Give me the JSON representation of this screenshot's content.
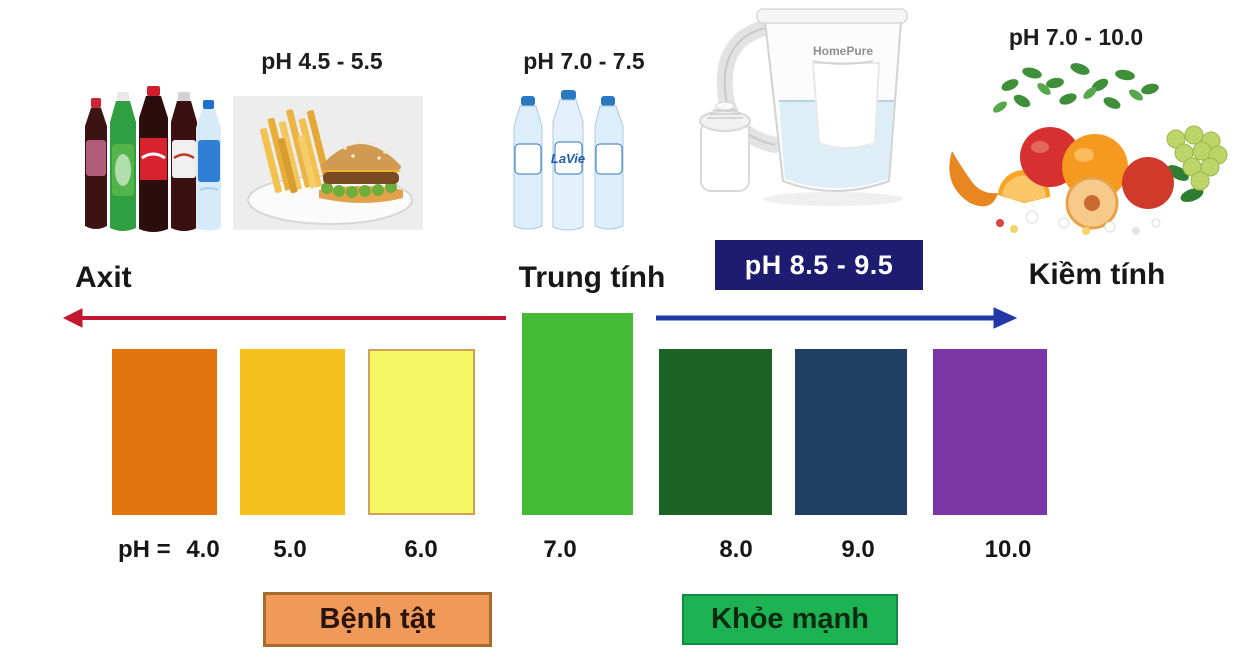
{
  "top_row": {
    "soda": {
      "alt": "soda-bottles"
    },
    "fastfood": {
      "ph_label": "pH 4.5 - 5.5"
    },
    "water": {
      "ph_label": "pH 7.0 - 7.5",
      "brand": "LaVie"
    },
    "pitcher": {
      "brand": "HomePure"
    },
    "fruits": {
      "ph_label": "pH 7.0 - 10.0"
    }
  },
  "badge": {
    "label": "pH 8.5 - 9.5",
    "bg": "#1d1c70",
    "text_color": "#ffffff"
  },
  "scale": {
    "acid_label": "Axit",
    "neutral_label": "Trung tính",
    "alkaline_label": "Kiềm tính",
    "arrow_left_color": "#c2182f",
    "arrow_right_color": "#2238a8",
    "ph_prefix": "pH =",
    "bars": [
      {
        "ph": "4.0",
        "color": "#e0750e",
        "border": ""
      },
      {
        "ph": "5.0",
        "color": "#f6c11f",
        "border": ""
      },
      {
        "ph": "6.0",
        "color": "#f6f863",
        "border": "#cfa357"
      },
      {
        "ph": "7.0",
        "color": "#45bb35",
        "border": ""
      },
      {
        "ph": "8.0",
        "color": "#1c6325",
        "border": ""
      },
      {
        "ph": "9.0",
        "color": "#213e63",
        "border": ""
      },
      {
        "ph": "10.0",
        "color": "#7b35a4",
        "border": ""
      }
    ]
  },
  "status_boxes": {
    "sick": {
      "label": "Bệnh tật",
      "fill": "#f09a59",
      "border": "#a96a2e",
      "text_color": "#2a130a"
    },
    "healthy": {
      "label": "Khỏe mạnh",
      "fill": "#1eb352",
      "border": "#0f8c3f",
      "text_color": "#0a2a12"
    }
  }
}
